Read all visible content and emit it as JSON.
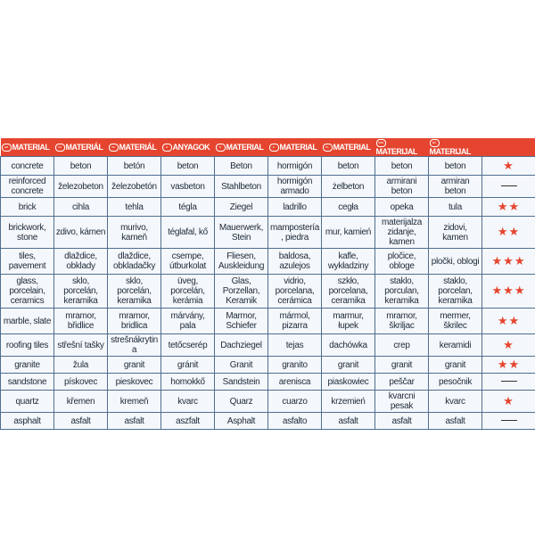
{
  "header": [
    {
      "flag": "GB",
      "label": "MATERIAL"
    },
    {
      "flag": "CZ",
      "label": "MATERIÁL"
    },
    {
      "flag": "SK",
      "label": "MATERIÁL"
    },
    {
      "flag": "H",
      "label": "ANYAGOK"
    },
    {
      "flag": "D",
      "label": "MATERIAL"
    },
    {
      "flag": "E",
      "label": "MATERIAL"
    },
    {
      "flag": "PL",
      "label": "MATERIAL"
    },
    {
      "flag": "SRB",
      "label": "MATERIJAL"
    },
    {
      "flag": "MK",
      "label": "MATERIJAL"
    },
    {
      "flag": "",
      "label": ""
    }
  ],
  "accent_color": "#e5452f",
  "rows": [
    {
      "cells": [
        "concrete",
        "beton",
        "betón",
        "beton",
        "Beton",
        "hormigón",
        "beton",
        "beton",
        "beton"
      ],
      "stars": 1
    },
    {
      "cells": [
        "reinforced concrete",
        "železobeton",
        "železobetón",
        "vasbeton",
        "Stahlbeton",
        "hormigón armado",
        "żelbeton",
        "armirani beton",
        "armiran beton"
      ],
      "stars": 0
    },
    {
      "cells": [
        "brick",
        "cihla",
        "tehla",
        "tégla",
        "Ziegel",
        "ladrillo",
        "cegła",
        "opeka",
        "tula"
      ],
      "stars": 2
    },
    {
      "cells": [
        "brickwork, stone",
        "zdivo, kámen",
        "murivo, kameň",
        "téglafal, kő",
        "Mauerwerk, Stein",
        "mampostería, piedra",
        "mur, kamień",
        "materijalza zidanje, kamen",
        "zidovi, kamen"
      ],
      "stars": 2
    },
    {
      "cells": [
        "tiles, pavement",
        "dlaždice, obklady",
        "dlaždice, obkladačky",
        "csempe, útburkolat",
        "Fliesen, Auskleidung",
        "baldosa, azulejos",
        "kafle, wykładziny",
        "pločice, obloge",
        "pločki, oblogi"
      ],
      "stars": 3
    },
    {
      "cells": [
        "glass, porcelain, ceramics",
        "sklo, porcelán, keramika",
        "sklo, porcelán, keramika",
        "üveg, porcelán, kerámia",
        "Glas, Porzellan, Keramik",
        "vidrio, porcelana, cerámica",
        "szkło, porcelana, ceramika",
        "staklo, porculan, keramika",
        "staklo, porcelan, keramika"
      ],
      "stars": 3
    },
    {
      "cells": [
        "marble, slate",
        "mramor, břidlice",
        "mramor, bridlica",
        "márvány, pala",
        "Marmor, Schiefer",
        "mármol, pizarra",
        "marmur, łupek",
        "mramor, škriljac",
        "mermer, škrilec"
      ],
      "stars": 2
    },
    {
      "cells": [
        "roofing tiles",
        "střešní tašky",
        "strešnákrytina",
        "tetőcserép",
        "Dachziegel",
        "tejas",
        "dachówka",
        "crep",
        "keramidi"
      ],
      "stars": 1
    },
    {
      "cells": [
        "granite",
        "žula",
        "granit",
        "gránit",
        "Granit",
        "granito",
        "granit",
        "granit",
        "granit"
      ],
      "stars": 2
    },
    {
      "cells": [
        "sandstone",
        "pískovec",
        "pieskovec",
        "homokkő",
        "Sandstein",
        "arenisca",
        "piaskowiec",
        "peščar",
        "pesočnik"
      ],
      "stars": 0
    },
    {
      "cells": [
        "quartz",
        "křemen",
        "kremeň",
        "kvarc",
        "Quarz",
        "cuarzo",
        "krzemień",
        "kvarcni pesak",
        "kvarc"
      ],
      "stars": 1
    },
    {
      "cells": [
        "asphalt",
        "asfalt",
        "asfalt",
        "aszfalt",
        "Asphalt",
        "asfalto",
        "asfalt",
        "asfalt",
        "asfalt"
      ],
      "stars": 0
    }
  ]
}
